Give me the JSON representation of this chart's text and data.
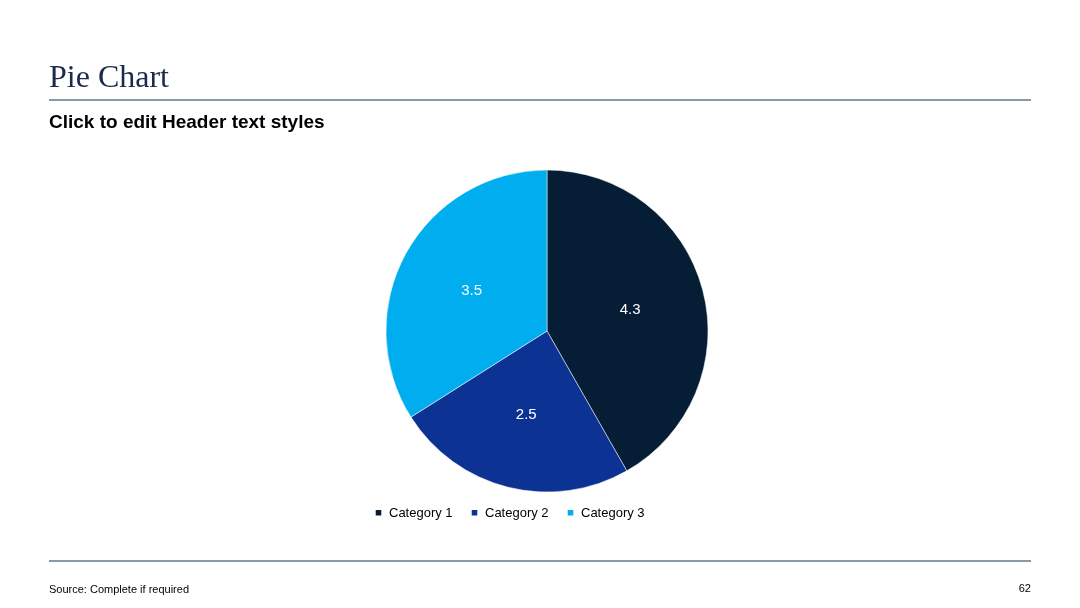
{
  "chart_data": {
    "type": "pie",
    "title": "Pie Chart",
    "subtitle": "Click to edit Header text styles",
    "categories": [
      "Category 1",
      "Category 2",
      "Category 3"
    ],
    "values": [
      4.3,
      2.5,
      3.5
    ],
    "colors": [
      "#061d36",
      "#0c3393",
      "#00adef"
    ],
    "data_labels": true,
    "legend": "bottom",
    "annotations": [
      "Source: Complete if required",
      "62"
    ]
  }
}
